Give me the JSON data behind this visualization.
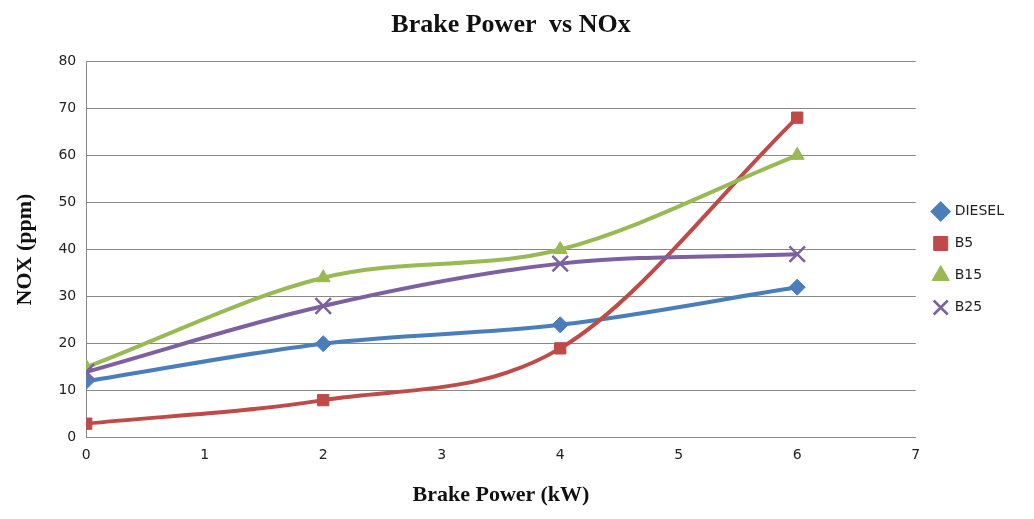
{
  "chart_data": {
    "type": "line",
    "title": "Brake Power  vs NOx",
    "xlabel": "Brake Power (kW)",
    "ylabel": "NOX (ppm)",
    "x": [
      0,
      2,
      4,
      6
    ],
    "series": [
      {
        "name": "DIESEL",
        "color": "#4a7ebb",
        "marker": "diamond",
        "values": [
          12,
          20,
          24,
          32
        ]
      },
      {
        "name": "B5",
        "color": "#be4b48",
        "marker": "square",
        "values": [
          3,
          8,
          19,
          68
        ]
      },
      {
        "name": "B15",
        "color": "#98b954",
        "marker": "triangle",
        "values": [
          15,
          34,
          40,
          60
        ]
      },
      {
        "name": "B25",
        "color": "#7d60a0",
        "marker": "cross",
        "values": [
          14,
          28,
          37,
          39
        ]
      }
    ],
    "xlim": [
      0,
      7
    ],
    "xticks": [
      0,
      1,
      2,
      3,
      4,
      5,
      6,
      7
    ],
    "ylim": [
      0,
      80
    ],
    "yticks": [
      0,
      10,
      20,
      30,
      40,
      50,
      60,
      70,
      80
    ],
    "grid": "y",
    "legend": "right",
    "line_style": "solid"
  }
}
